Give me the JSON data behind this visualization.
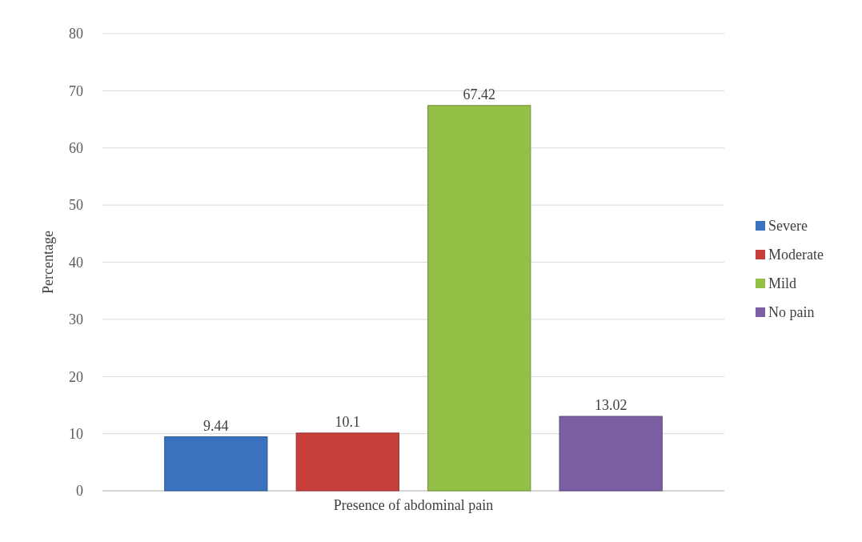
{
  "chart_data": {
    "type": "bar",
    "ylabel": "Percentage",
    "categories": [
      "Presence of abdominal pain"
    ],
    "series": [
      {
        "name": "Severe",
        "color": "#3b72c0",
        "values": [
          9.44
        ]
      },
      {
        "name": "Moderate",
        "color": "#c73f3b",
        "values": [
          10.1
        ]
      },
      {
        "name": "Mild",
        "color": "#93c047",
        "values": [
          67.42
        ]
      },
      {
        "name": "No pain",
        "color": "#7c5ea4",
        "values": [
          13.02
        ]
      }
    ],
    "ylim": [
      0,
      80
    ],
    "yticks": [
      0,
      10,
      20,
      30,
      40,
      50,
      60,
      70,
      80
    ],
    "grid": "y",
    "legend": "right",
    "data_labels": true
  }
}
